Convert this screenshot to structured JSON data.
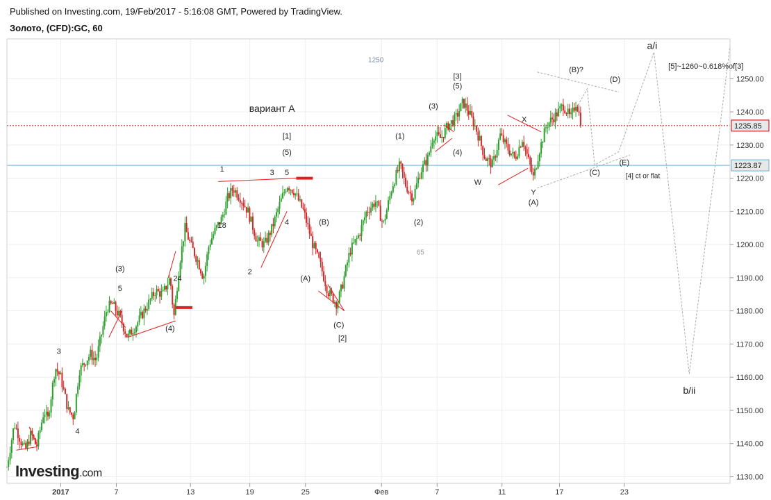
{
  "header": {
    "published": "Published on Investing.com, 19/Feb/2017 - 5:16:08 GMT, Powered by TradingView.",
    "symbol": "Золото, (CFD):GC, 60"
  },
  "brand": {
    "name": "Investing",
    "tld": ".com"
  },
  "colors": {
    "candle_up": "#2ca02c",
    "candle_down": "#d62728",
    "trend_lines": "#e02020",
    "projection": "#aaaaaa",
    "hline_current": "#c00000",
    "hline_level": "#6aaed6",
    "tag_current_bg": "#e8e8e8",
    "tag_level_bg": "#e8e8e8"
  },
  "chart_data": {
    "type": "line",
    "instrument": "Золото, (CFD):GC, 60",
    "y_axis": {
      "min": 1128,
      "max": 1262,
      "ticks": [
        1130,
        1140,
        1150,
        1160,
        1170,
        1180,
        1190,
        1200,
        1210,
        1220,
        1230,
        1240,
        1250
      ],
      "tick_labels": [
        "1130.00",
        "1140.00",
        "1150.00",
        "1160.00",
        "1170.00",
        "1180.00",
        "1190.00",
        "1200.00",
        "1210.00",
        "1220.00",
        "1230.00",
        "1240.00",
        "1250.00"
      ]
    },
    "x_axis": {
      "unit": "trading days (hourly candles)",
      "range": [
        0,
        39
      ],
      "ticks": [
        {
          "x": 2.9,
          "label": "2017"
        },
        {
          "x": 5.9,
          "label": "7"
        },
        {
          "x": 9.9,
          "label": "13"
        },
        {
          "x": 13.1,
          "label": "19"
        },
        {
          "x": 16.1,
          "label": "25"
        },
        {
          "x": 20.2,
          "label": "Фев"
        },
        {
          "x": 23.2,
          "label": "7"
        },
        {
          "x": 26.7,
          "label": "11"
        },
        {
          "x": 29.8,
          "label": "17"
        },
        {
          "x": 33.3,
          "label": "23"
        }
      ]
    },
    "grid": true,
    "price_tags": [
      {
        "value": 1235.85,
        "label": "1235.85",
        "kind": "current"
      },
      {
        "value": 1223.87,
        "label": "1223.87",
        "kind": "level"
      }
    ],
    "price_path": [
      {
        "x": 0.0,
        "y": 1133
      },
      {
        "x": 0.4,
        "y": 1146
      },
      {
        "x": 0.8,
        "y": 1140
      },
      {
        "x": 1.0,
        "y": 1138
      },
      {
        "x": 1.3,
        "y": 1143
      },
      {
        "x": 1.6,
        "y": 1139
      },
      {
        "x": 2.0,
        "y": 1150
      },
      {
        "x": 2.2,
        "y": 1147
      },
      {
        "x": 2.6,
        "y": 1163
      },
      {
        "x": 2.9,
        "y": 1160
      },
      {
        "x": 3.3,
        "y": 1150
      },
      {
        "x": 3.6,
        "y": 1148
      },
      {
        "x": 3.9,
        "y": 1162
      },
      {
        "x": 4.5,
        "y": 1167
      },
      {
        "x": 4.8,
        "y": 1165
      },
      {
        "x": 5.4,
        "y": 1181
      },
      {
        "x": 5.7,
        "y": 1182
      },
      {
        "x": 6.1,
        "y": 1178
      },
      {
        "x": 6.5,
        "y": 1172
      },
      {
        "x": 7.0,
        "y": 1176
      },
      {
        "x": 7.6,
        "y": 1182
      },
      {
        "x": 8.0,
        "y": 1186
      },
      {
        "x": 8.4,
        "y": 1185
      },
      {
        "x": 8.8,
        "y": 1190
      },
      {
        "x": 9.0,
        "y": 1178
      },
      {
        "x": 9.3,
        "y": 1194
      },
      {
        "x": 9.6,
        "y": 1205
      },
      {
        "x": 9.9,
        "y": 1200
      },
      {
        "x": 10.3,
        "y": 1195
      },
      {
        "x": 10.6,
        "y": 1190
      },
      {
        "x": 10.9,
        "y": 1200
      },
      {
        "x": 11.2,
        "y": 1204
      },
      {
        "x": 11.6,
        "y": 1208
      },
      {
        "x": 11.9,
        "y": 1214
      },
      {
        "x": 12.2,
        "y": 1217
      },
      {
        "x": 12.6,
        "y": 1214
      },
      {
        "x": 13.0,
        "y": 1210
      },
      {
        "x": 13.5,
        "y": 1201
      },
      {
        "x": 13.9,
        "y": 1200
      },
      {
        "x": 14.3,
        "y": 1205
      },
      {
        "x": 14.7,
        "y": 1212
      },
      {
        "x": 15.1,
        "y": 1218
      },
      {
        "x": 15.5,
        "y": 1216
      },
      {
        "x": 16.0,
        "y": 1210
      },
      {
        "x": 16.5,
        "y": 1200
      },
      {
        "x": 16.9,
        "y": 1194
      },
      {
        "x": 17.3,
        "y": 1186
      },
      {
        "x": 17.8,
        "y": 1182
      },
      {
        "x": 18.1,
        "y": 1188
      },
      {
        "x": 18.5,
        "y": 1198
      },
      {
        "x": 19.0,
        "y": 1203
      },
      {
        "x": 19.4,
        "y": 1210
      },
      {
        "x": 19.9,
        "y": 1213
      },
      {
        "x": 20.3,
        "y": 1206
      },
      {
        "x": 20.8,
        "y": 1218
      },
      {
        "x": 21.2,
        "y": 1224
      },
      {
        "x": 21.5,
        "y": 1218
      },
      {
        "x": 21.9,
        "y": 1214
      },
      {
        "x": 22.3,
        "y": 1222
      },
      {
        "x": 22.7,
        "y": 1226
      },
      {
        "x": 23.0,
        "y": 1233
      },
      {
        "x": 23.4,
        "y": 1232
      },
      {
        "x": 23.8,
        "y": 1236
      },
      {
        "x": 24.2,
        "y": 1238
      },
      {
        "x": 24.6,
        "y": 1243
      },
      {
        "x": 24.9,
        "y": 1240
      },
      {
        "x": 25.3,
        "y": 1235
      },
      {
        "x": 25.8,
        "y": 1226
      },
      {
        "x": 26.2,
        "y": 1224
      },
      {
        "x": 26.6,
        "y": 1233
      },
      {
        "x": 27.0,
        "y": 1229
      },
      {
        "x": 27.4,
        "y": 1226
      },
      {
        "x": 27.8,
        "y": 1232
      },
      {
        "x": 28.1,
        "y": 1226
      },
      {
        "x": 28.4,
        "y": 1220
      },
      {
        "x": 28.7,
        "y": 1228
      },
      {
        "x": 29.1,
        "y": 1236
      },
      {
        "x": 29.6,
        "y": 1239
      },
      {
        "x": 30.0,
        "y": 1242
      },
      {
        "x": 30.4,
        "y": 1238
      },
      {
        "x": 30.7,
        "y": 1243
      },
      {
        "x": 31.0,
        "y": 1236
      }
    ],
    "annotations": {
      "wave_labels": [
        {
          "text": "вариант A",
          "x": 14.3,
          "y": 1240,
          "size": "large"
        },
        {
          "text": "1250",
          "x": 19.9,
          "y": 1255,
          "color": "#7a8fa8",
          "size": "small"
        },
        {
          "text": "65",
          "x": 22.3,
          "y": 1197,
          "color": "#999999",
          "size": "small"
        },
        {
          "text": "1",
          "x": 11.6,
          "y": 1222
        },
        {
          "text": "3",
          "x": 14.3,
          "y": 1221
        },
        {
          "text": "5",
          "x": 15.1,
          "y": 1221
        },
        {
          "text": "[1]",
          "x": 15.1,
          "y": 1232
        },
        {
          "text": "(5)",
          "x": 15.1,
          "y": 1227
        },
        {
          "text": "18",
          "x": 11.6,
          "y": 1205
        },
        {
          "text": "4",
          "x": 15.1,
          "y": 1206
        },
        {
          "text": "2",
          "x": 13.1,
          "y": 1191
        },
        {
          "text": "(B)",
          "x": 17.1,
          "y": 1206
        },
        {
          "text": "(A)",
          "x": 16.1,
          "y": 1189
        },
        {
          "text": "(C)",
          "x": 17.9,
          "y": 1175
        },
        {
          "text": "[2]",
          "x": 18.1,
          "y": 1171
        },
        {
          "text": "24",
          "x": 9.2,
          "y": 1189
        },
        {
          "text": "(3)",
          "x": 6.1,
          "y": 1192
        },
        {
          "text": "5",
          "x": 6.1,
          "y": 1186
        },
        {
          "text": "(4)",
          "x": 8.8,
          "y": 1174
        },
        {
          "text": "3",
          "x": 2.8,
          "y": 1167
        },
        {
          "text": "4",
          "x": 3.8,
          "y": 1143
        },
        {
          "text": "(1)",
          "x": 21.2,
          "y": 1232
        },
        {
          "text": "(2)",
          "x": 22.2,
          "y": 1206
        },
        {
          "text": "(3)",
          "x": 23.0,
          "y": 1241
        },
        {
          "text": "[3]",
          "x": 24.3,
          "y": 1250
        },
        {
          "text": "(5)",
          "x": 24.3,
          "y": 1247
        },
        {
          "text": "(4)",
          "x": 24.3,
          "y": 1227
        },
        {
          "text": "W",
          "x": 25.4,
          "y": 1218
        },
        {
          "text": "X",
          "x": 27.9,
          "y": 1237
        },
        {
          "text": "Y",
          "x": 28.4,
          "y": 1215
        },
        {
          "text": "(A)",
          "x": 28.4,
          "y": 1212
        },
        {
          "text": "(B)?",
          "x": 30.7,
          "y": 1252
        },
        {
          "text": "(D)",
          "x": 32.8,
          "y": 1249
        },
        {
          "text": "(C)",
          "x": 31.7,
          "y": 1221
        },
        {
          "text": "(E)",
          "x": 33.3,
          "y": 1224
        },
        {
          "text": "[4] ct or flat",
          "x": 34.3,
          "y": 1220,
          "size": "small"
        },
        {
          "text": "a/i",
          "x": 34.8,
          "y": 1259,
          "size": "large"
        },
        {
          "text": "[5]~1260~0.618%of[3]",
          "x": 37.7,
          "y": 1253
        },
        {
          "text": "b/ii",
          "x": 36.8,
          "y": 1155,
          "size": "large"
        }
      ],
      "trend_lines": [
        {
          "x1": 11.4,
          "y1": 1219,
          "x2": 15.6,
          "y2": 1220
        },
        {
          "x1": 15.6,
          "y1": 1220,
          "x2": 16.5,
          "y2": 1220,
          "thick": true
        },
        {
          "x1": 13.7,
          "y1": 1193,
          "x2": 15.1,
          "y2": 1210
        },
        {
          "x1": 17.3,
          "y1": 1188,
          "x2": 18.2,
          "y2": 1180
        },
        {
          "x1": 16.8,
          "y1": 1186,
          "x2": 18.2,
          "y2": 1180
        },
        {
          "x1": 5.5,
          "y1": 1172,
          "x2": 6.2,
          "y2": 1180
        },
        {
          "x1": 5.6,
          "y1": 1180,
          "x2": 6.4,
          "y2": 1175
        },
        {
          "x1": 6.5,
          "y1": 1172,
          "x2": 9.1,
          "y2": 1177
        },
        {
          "x1": 8.7,
          "y1": 1190,
          "x2": 9.1,
          "y2": 1198
        },
        {
          "x1": 9.1,
          "y1": 1181,
          "x2": 10.0,
          "y2": 1181,
          "thick": true
        },
        {
          "x1": 0.5,
          "y1": 1138,
          "x2": 1.6,
          "y2": 1139
        },
        {
          "x1": 1.2,
          "y1": 1145,
          "x2": 1.6,
          "y2": 1140
        },
        {
          "x1": 23.6,
          "y1": 1236,
          "x2": 24.1,
          "y2": 1234
        },
        {
          "x1": 23.1,
          "y1": 1228,
          "x2": 24.0,
          "y2": 1232
        },
        {
          "x1": 27.0,
          "y1": 1239,
          "x2": 28.8,
          "y2": 1234
        },
        {
          "x1": 26.5,
          "y1": 1218,
          "x2": 28.1,
          "y2": 1223
        }
      ],
      "projection_lines": [
        {
          "points": [
            [
              28.6,
              1217
            ],
            [
              33.6,
              1227
            ]
          ]
        },
        {
          "points": [
            [
              28.6,
              1252
            ],
            [
              33.0,
              1246
            ]
          ]
        },
        {
          "points": [
            [
              30.8,
              1242
            ],
            [
              31.3,
              1247
            ],
            [
              31.7,
              1224
            ],
            [
              33.0,
              1228
            ],
            [
              34.9,
              1258
            ],
            [
              36.8,
              1161
            ],
            [
              39.0,
              1260
            ]
          ]
        }
      ]
    }
  }
}
